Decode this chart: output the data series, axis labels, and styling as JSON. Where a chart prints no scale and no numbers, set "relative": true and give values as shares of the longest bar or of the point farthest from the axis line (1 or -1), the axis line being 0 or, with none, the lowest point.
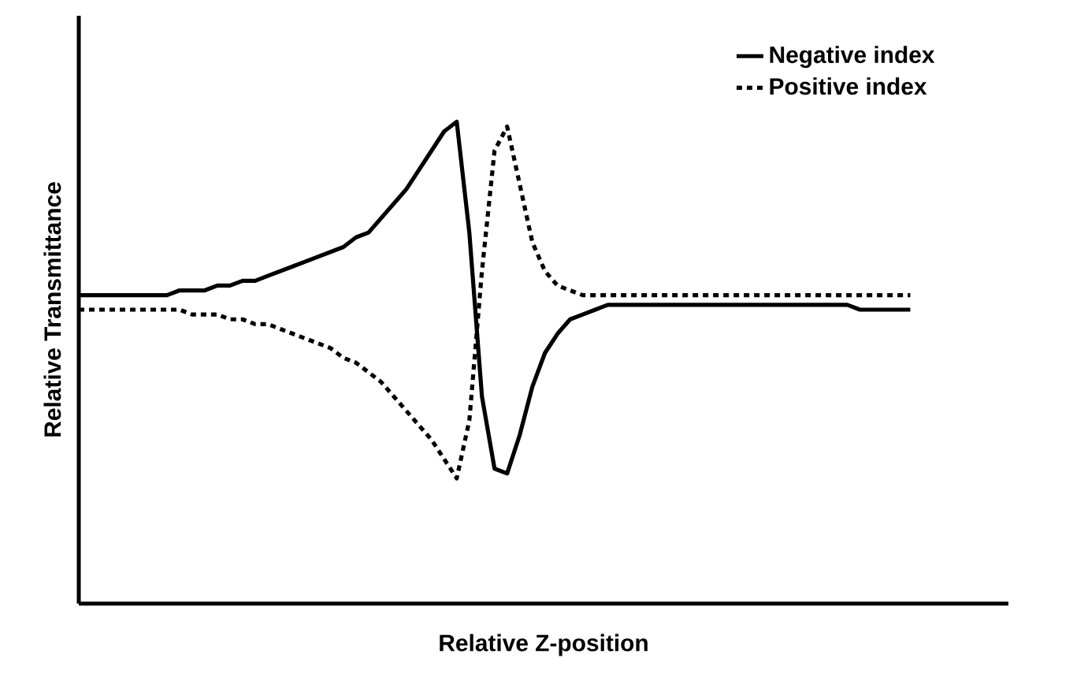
{
  "chart_data": {
    "type": "line",
    "relative": true,
    "xlabel": "Relative Z-position",
    "ylabel": "Relative Transmittance",
    "legend": "top right",
    "marker": "none",
    "categories": [
      null,
      null,
      null,
      null,
      null,
      null,
      null,
      null,
      null,
      null,
      null,
      null,
      null,
      null,
      null,
      null,
      null,
      null,
      null,
      null,
      null,
      null,
      null,
      null,
      null,
      null,
      null,
      null,
      null,
      null,
      null,
      null,
      null,
      null,
      null,
      null,
      null,
      null,
      null,
      null,
      null,
      null,
      null,
      null,
      null,
      null,
      null,
      null,
      null,
      null,
      null,
      null,
      null,
      null,
      null,
      null,
      null,
      null,
      null,
      null,
      null,
      null,
      null,
      null,
      null,
      null,
      null
    ],
    "series": [
      {
        "name": "Negative index",
        "color": "#000000",
        "line_style": "solid",
        "values": [
          0.64,
          0.64,
          0.64,
          0.64,
          0.64,
          0.64,
          0.64,
          0.64,
          0.65,
          0.65,
          0.65,
          0.66,
          0.66,
          0.67,
          0.67,
          0.68,
          0.69,
          0.7,
          0.71,
          0.72,
          0.73,
          0.74,
          0.76,
          0.77,
          0.8,
          0.83,
          0.86,
          0.9,
          0.94,
          0.98,
          1.0,
          0.77,
          0.43,
          0.28,
          0.27,
          0.35,
          0.45,
          0.52,
          0.56,
          0.59,
          0.6,
          0.61,
          0.62,
          0.62,
          0.62,
          0.62,
          0.62,
          0.62,
          0.62,
          0.62,
          0.62,
          0.62,
          0.62,
          0.62,
          0.62,
          0.62,
          0.62,
          0.62,
          0.62,
          0.62,
          0.62,
          0.62,
          0.61,
          0.61,
          0.61,
          0.61,
          0.61
        ]
      },
      {
        "name": "Positive index",
        "color": "#000000",
        "line_style": "dotted",
        "values": [
          0.61,
          0.61,
          0.61,
          0.61,
          0.61,
          0.61,
          0.61,
          0.61,
          0.61,
          0.6,
          0.6,
          0.6,
          0.59,
          0.59,
          0.58,
          0.58,
          0.57,
          0.56,
          0.55,
          0.54,
          0.53,
          0.51,
          0.5,
          0.48,
          0.46,
          0.43,
          0.4,
          0.37,
          0.34,
          0.3,
          0.26,
          0.38,
          0.69,
          0.94,
          0.99,
          0.87,
          0.75,
          0.69,
          0.66,
          0.65,
          0.64,
          0.64,
          0.64,
          0.64,
          0.64,
          0.64,
          0.64,
          0.64,
          0.64,
          0.64,
          0.64,
          0.64,
          0.64,
          0.64,
          0.64,
          0.64,
          0.64,
          0.64,
          0.64,
          0.64,
          0.64,
          0.64,
          0.64,
          0.64,
          0.64,
          0.64,
          0.64
        ]
      }
    ]
  }
}
